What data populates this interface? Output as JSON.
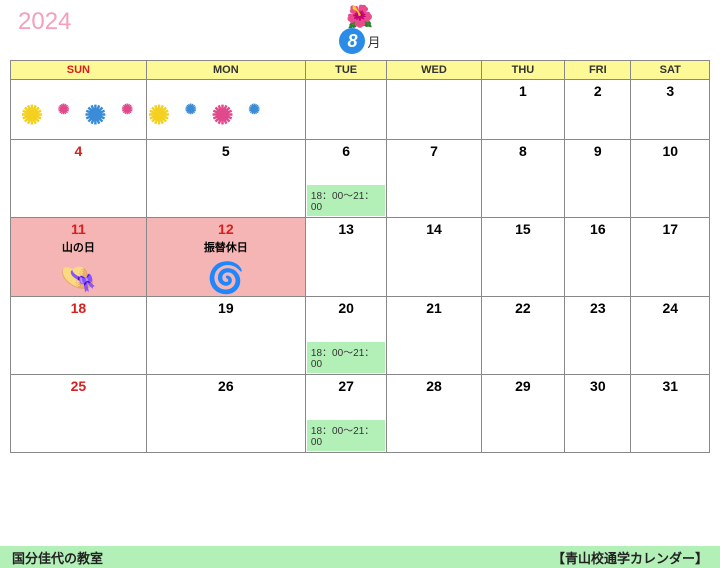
{
  "year_text": "2024",
  "month_number": "8",
  "month_suffix": "月",
  "day_headers": [
    "SUN",
    "MON",
    "TUE",
    "WED",
    "THU",
    "FRI",
    "SAT"
  ],
  "colors": {
    "header_bg": "#fdf996",
    "sunday": "#d62020",
    "timeslot_bg": "#b3f0b8",
    "holiday_bg": "#f5b5b5",
    "footer_bg": "#b3f0b8",
    "month_badge_bg": "#2a8ce6",
    "year_color": "#f4a0b8",
    "border": "#888888"
  },
  "weeks": [
    {
      "days": [
        "",
        "",
        "",
        "",
        "1",
        "2",
        "3"
      ]
    },
    {
      "days": [
        "4",
        "5",
        "6",
        "7",
        "8",
        "9",
        "10"
      ]
    },
    {
      "days": [
        "11",
        "12",
        "13",
        "14",
        "15",
        "16",
        "17"
      ]
    },
    {
      "days": [
        "18",
        "19",
        "20",
        "21",
        "22",
        "23",
        "24"
      ]
    },
    {
      "days": [
        "25",
        "26",
        "27",
        "28",
        "29",
        "30",
        "31"
      ]
    }
  ],
  "timeslot_text": "18：00～21：00",
  "holidays": {
    "d11": {
      "label": "山の日",
      "icon": "hat"
    },
    "d12": {
      "label": "振替休日",
      "icon": "coil"
    }
  },
  "red_days": [
    "4",
    "11",
    "12",
    "18",
    "25"
  ],
  "timeslot_days": [
    "6",
    "20",
    "27"
  ],
  "footer_left": "国分佳代の教室",
  "footer_right": "【青山校通学カレンダー】"
}
